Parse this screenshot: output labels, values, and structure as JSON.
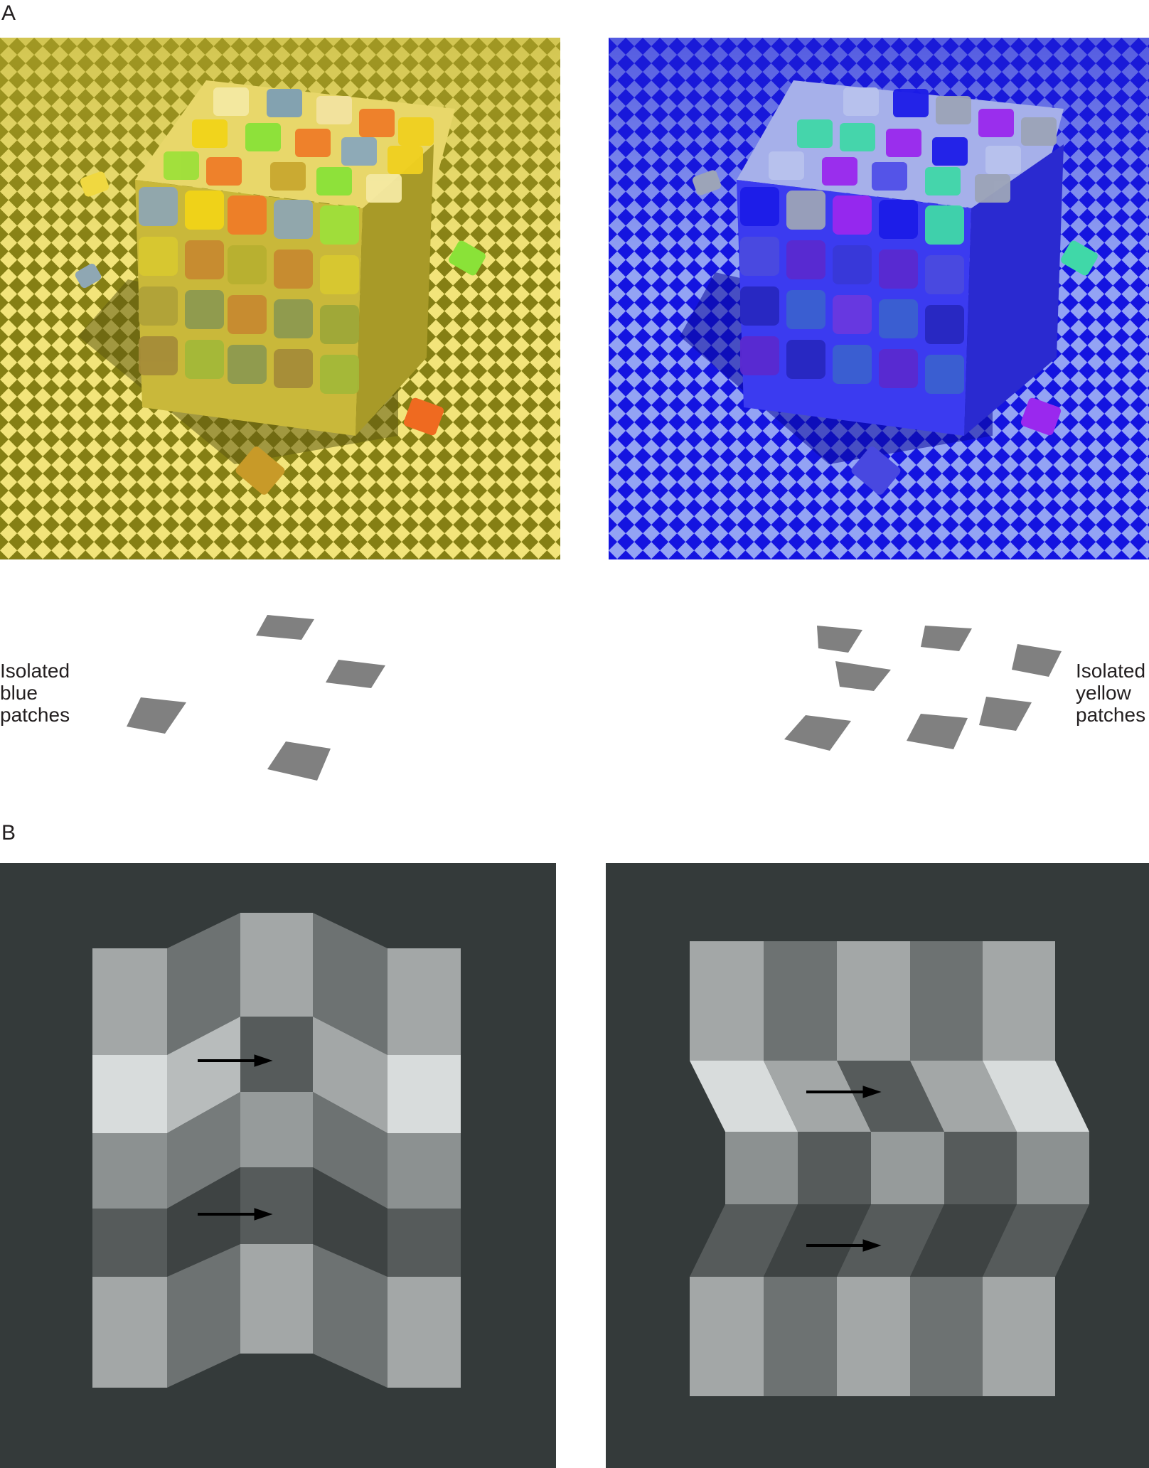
{
  "panel_a": {
    "label": "A",
    "left_caption": [
      "Isolated",
      "blue",
      "patches"
    ],
    "right_caption": [
      "Isolated",
      "yellow",
      "patches"
    ],
    "colors": {
      "yellow_floor_light": "#f2e47a",
      "yellow_floor_dark": "#7d7a12",
      "blue_floor_light": "#8f9ff2",
      "blue_floor_dark": "#1212e0",
      "patch_gray": "#808080"
    }
  },
  "panel_b": {
    "label": "B",
    "colors": {
      "background": "#343a3a",
      "light_tile": "#a7abab",
      "mid_tile": "#797e7e",
      "dark_tile": "#565b5b",
      "bright_tile": "#d8dcdc",
      "arrow": "#000000"
    }
  }
}
